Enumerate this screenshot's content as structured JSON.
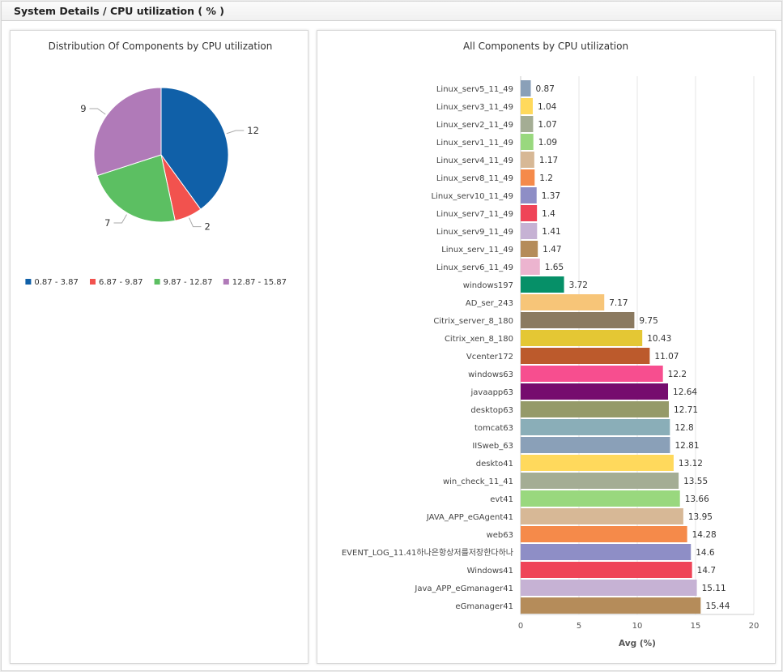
{
  "header": {
    "title": "System Details / CPU utilization ( % )"
  },
  "chart_data": [
    {
      "type": "pie",
      "title": "Distribution Of Components by CPU utilization",
      "categories": [
        "0.87 - 3.87",
        "6.87 - 9.87",
        "9.87 - 12.87",
        "12.87 - 15.87"
      ],
      "values": [
        12,
        2,
        7,
        9
      ],
      "colors": [
        "#1060a8",
        "#f2524e",
        "#5cbf62",
        "#b07ab8"
      ],
      "legend_position": "bottom"
    },
    {
      "type": "bar",
      "orientation": "horizontal",
      "title": "All Components by CPU utilization",
      "xlabel": "Avg (%)",
      "xlim": [
        0,
        20
      ],
      "xticks": [
        0,
        5,
        10,
        15,
        20
      ],
      "grid": true,
      "categories": [
        "Linux_serv5_11_49",
        "Linux_serv3_11_49",
        "Linux_serv2_11_49",
        "Linux_serv1_11_49",
        "Linux_serv4_11_49",
        "Linux_serv8_11_49",
        "Linux_serv10_11_49",
        "Linux_serv7_11_49",
        "Linux_serv9_11_49",
        "Linux_serv_11_49",
        "Linux_serv6_11_49",
        "windows197",
        "AD_ser_243",
        "Citrix_server_8_180",
        "Citrix_xen_8_180",
        "Vcenter172",
        "windows63",
        "javaapp63",
        "desktop63",
        "tomcat63",
        "IISweb_63",
        "deskto41",
        "win_check_11_41",
        "evt41",
        "JAVA_APP_eGAgent41",
        "web63",
        "EVENT_LOG_11.41하나은항상저를저장한다하나",
        "Windows41",
        "Java_APP_eGmanager41",
        "eGmanager41"
      ],
      "values": [
        0.87,
        1.04,
        1.07,
        1.09,
        1.17,
        1.2,
        1.37,
        1.4,
        1.41,
        1.47,
        1.65,
        3.72,
        7.17,
        9.75,
        10.43,
        11.07,
        12.2,
        12.64,
        12.71,
        12.8,
        12.81,
        13.12,
        13.55,
        13.66,
        13.95,
        14.28,
        14.6,
        14.7,
        15.11,
        15.44
      ],
      "value_labels": [
        "0.87",
        "1.04",
        "1.07",
        "1.09",
        "1.17",
        "1.2",
        "1.37",
        "1.4",
        "1.41",
        "1.47",
        "1.65",
        "3.72",
        "7.17",
        "9.75",
        "10.43",
        "11.07",
        "12.2",
        "12.64",
        "12.71",
        "12.8",
        "12.81",
        "13.12",
        "13.55",
        "13.66",
        "13.95",
        "14.28",
        "14.6",
        "14.7",
        "15.11",
        "15.44"
      ],
      "colors": [
        "#8aa0b8",
        "#ffd95c",
        "#a4ad94",
        "#99d87e",
        "#d7b896",
        "#f58a4a",
        "#8e8ec6",
        "#ef4458",
        "#c6b2d4",
        "#b58c5a",
        "#ecb4cf",
        "#069068",
        "#f7c578",
        "#8b7a60",
        "#e4c734",
        "#bc5a2c",
        "#f74e8f",
        "#760c6e",
        "#959a69",
        "#8aaeb8",
        "#8aa0b8",
        "#ffd95c",
        "#a4ad94",
        "#99d87e",
        "#d7b896",
        "#f58a4a",
        "#8e8ec6",
        "#ef4458",
        "#c6b2d4",
        "#b58c5a"
      ]
    }
  ]
}
